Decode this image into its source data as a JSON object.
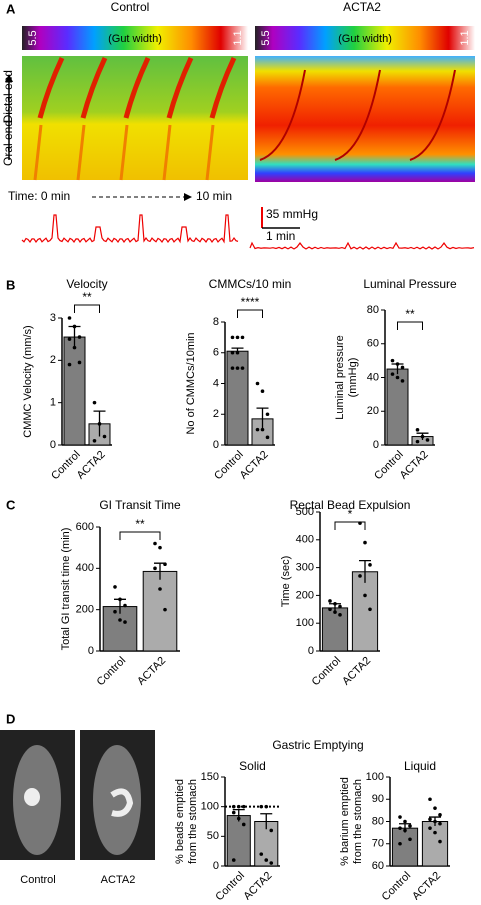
{
  "panels": [
    "A",
    "B",
    "C",
    "D"
  ],
  "panel_a": {
    "groups": [
      "Control",
      "ACTA2"
    ],
    "scale_max": 5.5,
    "scale_label": "(Gut width)",
    "scale_min": 1.1,
    "axis_top": "Distal end",
    "axis_bottom": "Oral end",
    "time_start": "Time: 0 min",
    "time_end": "10 min",
    "pressure_scale": "35 mmHg",
    "time_scale": "1 min"
  },
  "panel_d": {
    "title": "Gastric Emptying",
    "images": [
      "Control",
      "ACTA2"
    ]
  },
  "chart_data": [
    {
      "type": "bar",
      "title": "Velocity",
      "ylabel": [
        "CMMC Velocity (mm/s)"
      ],
      "categories": [
        "Control",
        "ACTA2"
      ],
      "colors": [
        "#7f7f7f",
        "#ababab"
      ],
      "values": [
        2.55,
        0.5
      ],
      "errors": [
        0.25,
        0.3
      ],
      "points": [
        [
          3.0,
          2.8,
          2.55,
          2.5,
          2.3,
          1.95,
          1.9
        ],
        [
          1.0,
          0.5,
          0.2,
          0.1
        ]
      ],
      "ylim": [
        0,
        3
      ],
      "yticks": [
        0,
        1,
        2,
        3
      ],
      "significance": "**"
    },
    {
      "type": "bar",
      "title": "CMMCs/10 min",
      "ylabel": [
        "No of CMMCs/10min"
      ],
      "categories": [
        "Control",
        "ACTA2"
      ],
      "colors": [
        "#7f7f7f",
        "#ababab"
      ],
      "values": [
        6.1,
        1.7
      ],
      "errors": [
        0.2,
        0.7
      ],
      "points": [
        [
          7,
          7,
          7,
          6,
          6,
          5,
          5,
          5
        ],
        [
          4,
          3.5,
          2,
          1,
          1,
          0.5
        ]
      ],
      "ylim": [
        0,
        8
      ],
      "yticks": [
        0,
        2,
        4,
        6,
        8
      ],
      "significance": "****"
    },
    {
      "type": "bar",
      "title": "Luminal Pressure",
      "ylabel": [
        "Luminal pressure",
        "(mmHg)"
      ],
      "categories": [
        "Control",
        "ACTA2"
      ],
      "colors": [
        "#7f7f7f",
        "#ababab"
      ],
      "values": [
        45,
        5
      ],
      "errors": [
        3,
        2
      ],
      "points": [
        [
          50,
          48,
          46,
          42,
          40,
          38
        ],
        [
          9,
          5,
          3,
          2
        ]
      ],
      "ylim": [
        0,
        80
      ],
      "yticks": [
        0,
        20,
        40,
        60,
        80
      ],
      "significance": "**"
    },
    {
      "type": "bar",
      "title": "GI Transit Time",
      "ylabel": [
        "Total GI transit time (min)"
      ],
      "categories": [
        "Control",
        "ACTA2"
      ],
      "colors": [
        "#7f7f7f",
        "#ababab"
      ],
      "values": [
        215,
        385
      ],
      "errors": [
        35,
        40
      ],
      "points": [
        [
          310,
          250,
          220,
          190,
          150,
          140
        ],
        [
          520,
          500,
          420,
          400,
          300,
          200
        ]
      ],
      "ylim": [
        0,
        600
      ],
      "yticks": [
        0,
        200,
        400,
        600
      ],
      "significance": "**"
    },
    {
      "type": "bar",
      "title": "Rectal Bead Expulsion",
      "ylabel": [
        "Time (sec)"
      ],
      "categories": [
        "Control",
        "ACTA2"
      ],
      "colors": [
        "#7f7f7f",
        "#ababab"
      ],
      "values": [
        155,
        285
      ],
      "errors": [
        15,
        40
      ],
      "points": [
        [
          180,
          170,
          160,
          150,
          140,
          130
        ],
        [
          460,
          390,
          310,
          270,
          200,
          150
        ]
      ],
      "ylim": [
        0,
        500
      ],
      "yticks": [
        0,
        100,
        200,
        300,
        400,
        500
      ],
      "significance": "*"
    },
    {
      "type": "bar",
      "title": "Solid",
      "ylabel": [
        "% beads emptied",
        "from the stomach"
      ],
      "categories": [
        "Control",
        "ACTA2"
      ],
      "colors": [
        "#7f7f7f",
        "#ababab"
      ],
      "values": [
        85,
        75
      ],
      "errors": [
        10,
        13
      ],
      "points": [
        [
          100,
          100,
          100,
          90,
          80,
          70,
          10
        ],
        [
          100,
          100,
          60,
          20,
          10,
          5
        ]
      ],
      "ylim": [
        0,
        150
      ],
      "yticks": [
        0,
        50,
        100,
        150
      ],
      "reference_line": 100
    },
    {
      "type": "bar",
      "title": "Liquid",
      "ylabel": [
        "% barium emptied",
        "from the stomach"
      ],
      "categories": [
        "Control",
        "ACTA2"
      ],
      "colors": [
        "#7f7f7f",
        "#ababab"
      ],
      "values": [
        77,
        80
      ],
      "errors": [
        2,
        2
      ],
      "points": [
        [
          82,
          80,
          78,
          77,
          76,
          72,
          70
        ],
        [
          90,
          86,
          83,
          81,
          80,
          79,
          77,
          75,
          71
        ]
      ],
      "ylim": [
        60,
        100
      ],
      "yticks": [
        60,
        70,
        80,
        90,
        100
      ]
    }
  ]
}
